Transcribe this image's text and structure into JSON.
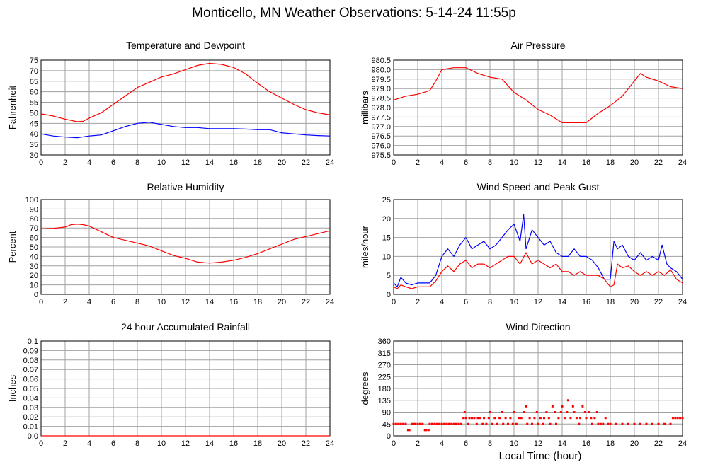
{
  "title": "Monticello, MN Weather Observations: 5-14-24 11:55p",
  "x_axis_label": "Local Time (hour)",
  "colors": {
    "primary": "#ff0000",
    "secondary": "#0000ff",
    "grid": "#a0a0a0"
  },
  "chart_data": [
    {
      "id": "temp",
      "type": "line",
      "title": "Temperature and Dewpoint",
      "ylabel": "Fahrenheit",
      "xlim": [
        0,
        24
      ],
      "ylim": [
        30,
        75
      ],
      "xticks": [
        0,
        2,
        4,
        6,
        8,
        10,
        12,
        14,
        16,
        18,
        20,
        22,
        24
      ],
      "yticks": [
        "30",
        "35",
        "40",
        "45",
        "50",
        "55",
        "60",
        "65",
        "70",
        "75"
      ],
      "grid": true,
      "series": [
        {
          "color": "#ff0000",
          "style": "line",
          "x": [
            0,
            1,
            2,
            3,
            3.5,
            4,
            5,
            6,
            7,
            8,
            9,
            10,
            11,
            12,
            13,
            14,
            15,
            16,
            17,
            18,
            19,
            20,
            21,
            22,
            23,
            24
          ],
          "y": [
            49.5,
            48.5,
            47,
            45.8,
            46,
            47.5,
            50,
            54,
            58,
            62,
            64.5,
            67,
            68.5,
            70.5,
            72.5,
            73.5,
            73,
            71.5,
            68.5,
            64,
            60,
            57,
            54,
            51.5,
            50,
            49
          ]
        },
        {
          "color": "#0000ff",
          "style": "line",
          "x": [
            0,
            1,
            2,
            3,
            4,
            5,
            6,
            7,
            8,
            9,
            10,
            11,
            12,
            13,
            14,
            15,
            16,
            17,
            18,
            19,
            20,
            21,
            22,
            23,
            24
          ],
          "y": [
            40,
            39,
            38.5,
            38.2,
            39,
            39.5,
            41.5,
            43.5,
            45,
            45.5,
            44.5,
            43.5,
            43,
            43,
            42.5,
            42.5,
            42.5,
            42.3,
            42,
            42,
            40.5,
            40,
            39.5,
            39.2,
            39
          ]
        }
      ]
    },
    {
      "id": "pressure",
      "type": "line",
      "title": "Air Pressure",
      "ylabel": "millibars",
      "xlim": [
        0,
        24
      ],
      "ylim": [
        975.5,
        980.5
      ],
      "xticks": [
        0,
        2,
        4,
        6,
        8,
        10,
        12,
        14,
        16,
        18,
        20,
        22,
        24
      ],
      "yticks": [
        "975.5",
        "976.0",
        "976.5",
        "977.0",
        "977.5",
        "978.0",
        "978.5",
        "979.0",
        "979.5",
        "980.0",
        "980.5"
      ],
      "grid": true,
      "series": [
        {
          "color": "#ff0000",
          "style": "line",
          "x": [
            0,
            1,
            2,
            3,
            3.5,
            4,
            5,
            6,
            7,
            8,
            9,
            10,
            11,
            12,
            13,
            14,
            15,
            16,
            17,
            18,
            19,
            20,
            20.5,
            21,
            22,
            23,
            24
          ],
          "y": [
            978.4,
            978.6,
            978.7,
            978.9,
            979.4,
            980.0,
            980.1,
            980.1,
            979.8,
            979.6,
            979.5,
            978.8,
            978.4,
            977.9,
            977.6,
            977.2,
            977.2,
            977.2,
            977.7,
            978.1,
            978.6,
            979.4,
            979.8,
            979.6,
            979.4,
            979.1,
            979.0
          ]
        }
      ]
    },
    {
      "id": "humidity",
      "type": "line",
      "title": "Relative Humidity",
      "ylabel": "Percent",
      "xlim": [
        0,
        24
      ],
      "ylim": [
        0,
        100
      ],
      "xticks": [
        0,
        2,
        4,
        6,
        8,
        10,
        12,
        14,
        16,
        18,
        20,
        22,
        24
      ],
      "yticks": [
        "0",
        "10",
        "20",
        "30",
        "40",
        "50",
        "60",
        "70",
        "80",
        "90",
        "100"
      ],
      "grid": true,
      "series": [
        {
          "color": "#ff0000",
          "style": "line",
          "x": [
            0,
            1,
            2,
            2.5,
            3,
            3.5,
            4,
            5,
            6,
            7,
            8,
            9,
            10,
            11,
            12,
            13,
            14,
            15,
            16,
            17,
            18,
            19,
            20,
            21,
            22,
            23,
            24
          ],
          "y": [
            69,
            69.5,
            71,
            73.5,
            74,
            73.5,
            72,
            66,
            60,
            57,
            54,
            51,
            46,
            41,
            38,
            34,
            33,
            34,
            36,
            39,
            43,
            48,
            53,
            58,
            61,
            64,
            67
          ]
        }
      ]
    },
    {
      "id": "wind",
      "type": "line",
      "title": "Wind Speed and Peak Gust",
      "ylabel": "miles/hour",
      "xlim": [
        0,
        24
      ],
      "ylim": [
        0,
        25
      ],
      "xticks": [
        0,
        2,
        4,
        6,
        8,
        10,
        12,
        14,
        16,
        18,
        20,
        22,
        24
      ],
      "yticks": [
        "0",
        "5",
        "10",
        "15",
        "20",
        "25"
      ],
      "grid": true,
      "series": [
        {
          "color": "#0000ff",
          "style": "line",
          "x": [
            0,
            0.3,
            0.6,
            1,
            1.5,
            2,
            2.5,
            3,
            3.5,
            4,
            4.5,
            5,
            5.5,
            6,
            6.5,
            7,
            7.5,
            8,
            8.5,
            9,
            9.5,
            10,
            10.5,
            10.8,
            11,
            11.5,
            12,
            12.5,
            13,
            13.5,
            14,
            14.5,
            15,
            15.5,
            16,
            16.5,
            17,
            17.5,
            18,
            18.3,
            18.6,
            19,
            19.5,
            20,
            20.5,
            21,
            21.5,
            22,
            22.3,
            22.7,
            23,
            23.5,
            24
          ],
          "y": [
            3,
            2,
            4.5,
            3,
            2.5,
            3,
            3,
            3,
            5,
            10,
            12,
            10,
            13,
            15,
            12,
            13,
            14,
            12,
            13,
            15,
            17,
            18.5,
            14,
            21,
            12,
            17,
            15,
            13,
            14,
            11,
            10,
            10,
            12,
            10,
            10,
            9,
            7,
            4,
            4,
            14,
            12,
            13,
            10,
            9,
            11,
            9,
            10,
            9,
            13,
            8,
            7,
            6,
            4
          ]
        },
        {
          "color": "#ff0000",
          "style": "line",
          "x": [
            0,
            0.3,
            0.6,
            1,
            1.5,
            2,
            2.5,
            3,
            3.5,
            4,
            4.5,
            5,
            5.5,
            6,
            6.5,
            7,
            7.5,
            8,
            8.5,
            9,
            9.5,
            10,
            10.5,
            11,
            11.5,
            12,
            12.5,
            13,
            13.5,
            14,
            14.5,
            15,
            15.5,
            16,
            16.5,
            17,
            17.5,
            18,
            18.3,
            18.6,
            19,
            19.5,
            20,
            20.5,
            21,
            21.5,
            22,
            22.5,
            23,
            23.5,
            24
          ],
          "y": [
            2,
            1.5,
            2.5,
            2,
            1.5,
            2,
            2,
            2,
            3.5,
            6,
            7.5,
            6,
            8,
            9,
            7,
            8,
            8,
            7,
            8,
            9,
            10,
            10,
            8,
            11,
            8,
            9,
            8,
            7,
            8,
            6,
            6,
            5,
            6,
            5,
            5,
            5,
            4,
            2,
            2.5,
            8,
            7,
            7.5,
            6,
            5,
            6,
            5,
            6,
            5,
            6.5,
            4,
            3
          ]
        }
      ]
    },
    {
      "id": "rain",
      "type": "line",
      "title": "24 hour Accumulated Rainfall",
      "ylabel": "Inches",
      "xlim": [
        0,
        24
      ],
      "ylim": [
        0,
        0.1
      ],
      "xticks": [
        0,
        2,
        4,
        6,
        8,
        10,
        12,
        14,
        16,
        18,
        20,
        22,
        24
      ],
      "yticks": [
        "0.0",
        "0.01",
        "0.02",
        "0.03",
        "0.04",
        "0.05",
        "0.06",
        "0.07",
        "0.08",
        "0.09",
        "0.1"
      ],
      "grid": true,
      "series": [
        {
          "color": "#ff0000",
          "style": "line",
          "x": [
            0,
            24
          ],
          "y": [
            0,
            0
          ]
        }
      ]
    },
    {
      "id": "direction",
      "type": "scatter",
      "title": "Wind Direction",
      "ylabel": "degrees",
      "xlim": [
        0,
        24
      ],
      "ylim": [
        0,
        360
      ],
      "xticks": [
        0,
        2,
        4,
        6,
        8,
        10,
        12,
        14,
        16,
        18,
        20,
        22,
        24
      ],
      "yticks": [
        "0",
        "45",
        "90",
        "135",
        "180",
        "225",
        "270",
        "315",
        "360"
      ],
      "grid": true,
      "series": [
        {
          "color": "#ff0000",
          "style": "dots",
          "x": [
            0,
            0.2,
            0.4,
            0.6,
            0.8,
            1.0,
            1.2,
            1.3,
            1.5,
            1.7,
            1.8,
            2.0,
            2.2,
            2.4,
            2.6,
            2.7,
            2.9,
            3.0,
            3.2,
            3.4,
            3.6,
            3.8,
            4.0,
            4.2,
            4.4,
            4.6,
            4.8,
            5.0,
            5.2,
            5.4,
            5.6,
            5.8,
            5.9,
            6.0,
            6.2,
            6.3,
            6.5,
            6.7,
            6.9,
            7.0,
            7.2,
            7.4,
            7.5,
            7.7,
            7.9,
            8.0,
            8.2,
            8.4,
            8.6,
            8.8,
            9.0,
            9.1,
            9.3,
            9.5,
            9.7,
            9.9,
            10.0,
            10.2,
            10.4,
            10.6,
            10.8,
            11.0,
            11.1,
            11.3,
            11.5,
            11.7,
            11.9,
            12.0,
            12.2,
            12.4,
            12.5,
            12.7,
            12.9,
            13.0,
            13.2,
            13.4,
            13.5,
            13.7,
            13.9,
            14.0,
            14.2,
            14.4,
            14.5,
            14.7,
            14.9,
            15.0,
            15.2,
            15.4,
            15.5,
            15.7,
            15.9,
            16.0,
            16.2,
            16.4,
            16.5,
            16.7,
            16.9,
            17.0,
            17.2,
            17.4,
            17.6,
            17.8,
            18.0,
            18.5,
            19.0,
            19.5,
            20.0,
            20.5,
            21.0,
            21.5,
            22.0,
            22.5,
            23.0,
            23.2,
            23.4,
            23.6,
            23.8,
            24.0
          ],
          "y": [
            45,
            45,
            45,
            45,
            45,
            45,
            22,
            22,
            45,
            45,
            45,
            45,
            45,
            45,
            22,
            22,
            22,
            45,
            45,
            45,
            45,
            45,
            45,
            45,
            45,
            45,
            45,
            45,
            45,
            45,
            45,
            68,
            90,
            68,
            45,
            68,
            68,
            68,
            45,
            68,
            68,
            45,
            68,
            45,
            68,
            90,
            45,
            68,
            45,
            68,
            90,
            45,
            68,
            45,
            68,
            45,
            90,
            45,
            68,
            68,
            90,
            112,
            45,
            68,
            45,
            68,
            90,
            45,
            68,
            45,
            68,
            90,
            68,
            45,
            112,
            90,
            45,
            68,
            90,
            112,
            68,
            90,
            135,
            68,
            112,
            90,
            68,
            45,
            68,
            112,
            90,
            68,
            90,
            68,
            45,
            68,
            90,
            45,
            45,
            45,
            68,
            45,
            45,
            45,
            45,
            45,
            45,
            45,
            45,
            45,
            45,
            45,
            45,
            68,
            68,
            68,
            68,
            68
          ]
        }
      ]
    }
  ]
}
